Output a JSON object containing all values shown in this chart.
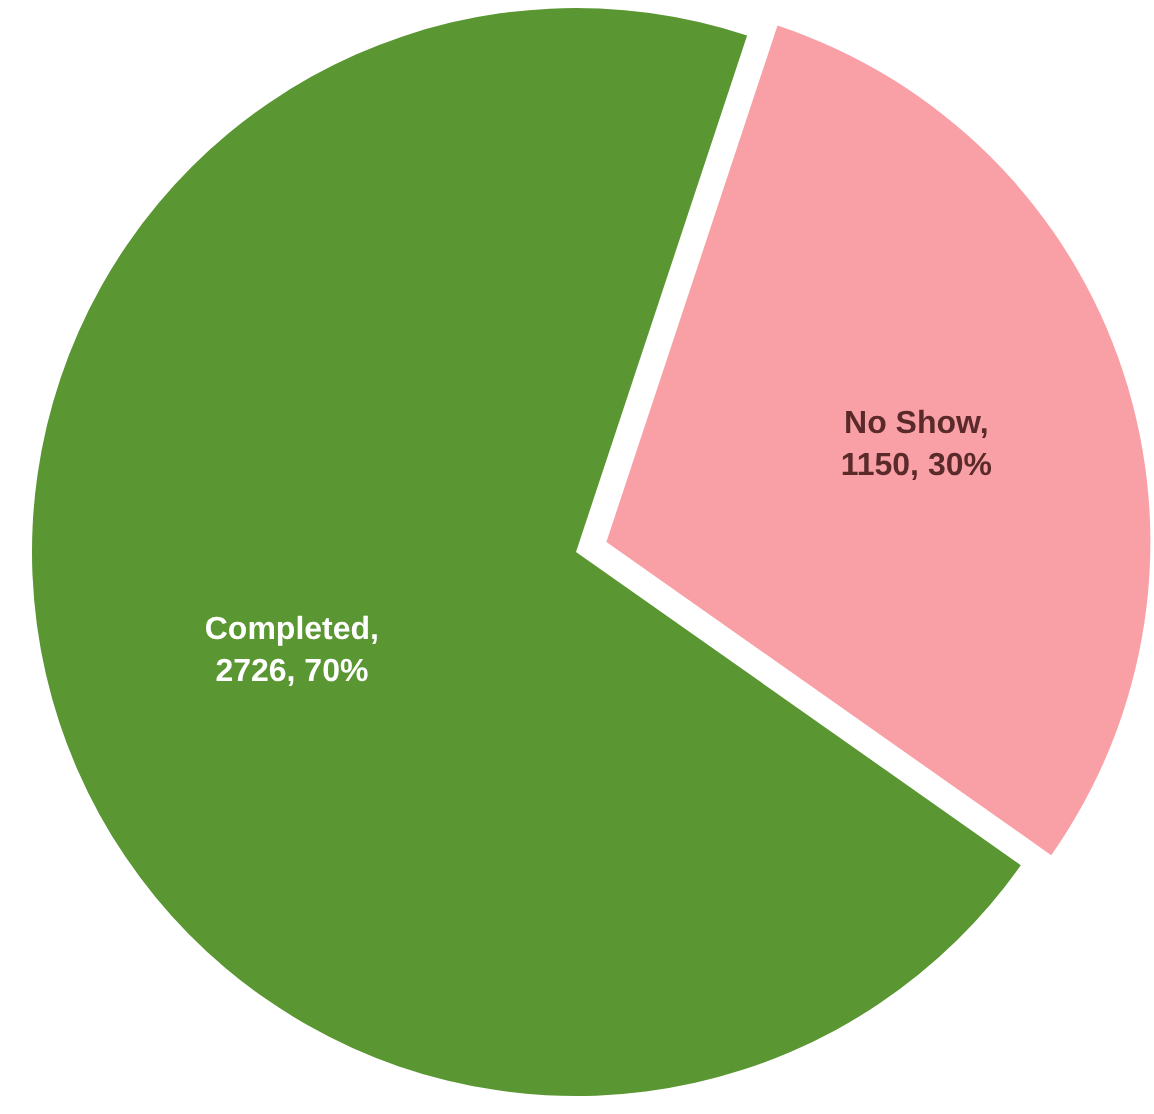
{
  "chart_data": {
    "type": "pie",
    "categories": [
      "Completed",
      "No Show"
    ],
    "values": [
      2726,
      1150
    ],
    "value_labels": [
      ",\n2726, 70%",
      ",\n1150, 30%"
    ],
    "colors": [
      "#5a9632",
      "#f8a0a6"
    ]
  }
}
